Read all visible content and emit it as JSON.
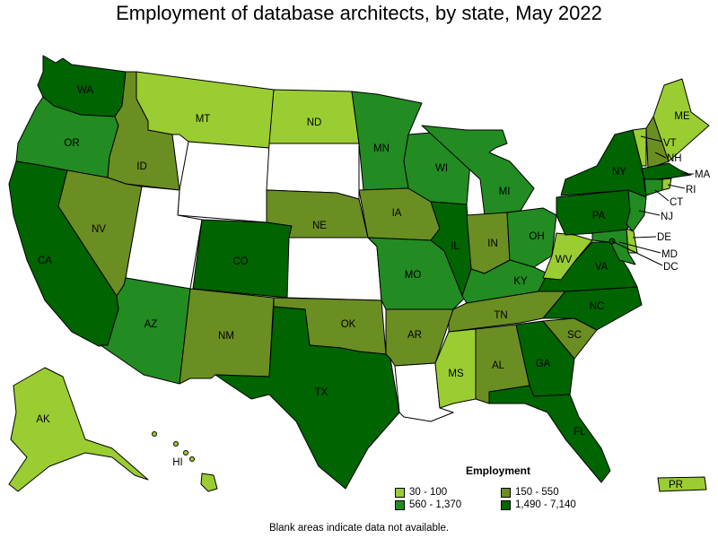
{
  "title": "Employment of database architects, by state, May 2022",
  "legend": {
    "title": "Employment",
    "items": [
      {
        "label": "30 - 100",
        "color": "#9ACD32"
      },
      {
        "label": "150 - 550",
        "color": "#6B8E23"
      },
      {
        "label": "560 - 1,370",
        "color": "#228B22"
      },
      {
        "label": "1,490 - 7,140",
        "color": "#006400"
      }
    ]
  },
  "footnote": "Blank areas indicate data not available.",
  "states": {
    "WA": {
      "label": "WA",
      "color": "#006400"
    },
    "OR": {
      "label": "OR",
      "color": "#228B22"
    },
    "CA": {
      "label": "CA",
      "color": "#006400"
    },
    "ID": {
      "label": "ID",
      "color": "#6B8E23"
    },
    "NV": {
      "label": "NV",
      "color": "#6B8E23"
    },
    "MT": {
      "label": "MT",
      "color": "#9ACD32"
    },
    "WY": {
      "label": "",
      "color": "#ffffff"
    },
    "UT": {
      "label": "",
      "color": "#ffffff"
    },
    "AZ": {
      "label": "AZ",
      "color": "#228B22"
    },
    "CO": {
      "label": "CO",
      "color": "#006400"
    },
    "NM": {
      "label": "NM",
      "color": "#6B8E23"
    },
    "ND": {
      "label": "ND",
      "color": "#9ACD32"
    },
    "SD": {
      "label": "",
      "color": "#ffffff"
    },
    "NE": {
      "label": "NE",
      "color": "#6B8E23"
    },
    "KS": {
      "label": "",
      "color": "#ffffff"
    },
    "OK": {
      "label": "OK",
      "color": "#6B8E23"
    },
    "TX": {
      "label": "TX",
      "color": "#006400"
    },
    "MN": {
      "label": "MN",
      "color": "#228B22"
    },
    "IA": {
      "label": "IA",
      "color": "#6B8E23"
    },
    "MO": {
      "label": "MO",
      "color": "#228B22"
    },
    "AR": {
      "label": "AR",
      "color": "#6B8E23"
    },
    "LA": {
      "label": "",
      "color": "#ffffff"
    },
    "WI": {
      "label": "WI",
      "color": "#228B22"
    },
    "IL": {
      "label": "IL",
      "color": "#006400"
    },
    "MI": {
      "label": "MI",
      "color": "#228B22"
    },
    "IN": {
      "label": "IN",
      "color": "#6B8E23"
    },
    "OH": {
      "label": "OH",
      "color": "#228B22"
    },
    "KY": {
      "label": "KY",
      "color": "#228B22"
    },
    "TN": {
      "label": "TN",
      "color": "#6B8E23"
    },
    "MS": {
      "label": "MS",
      "color": "#9ACD32"
    },
    "AL": {
      "label": "AL",
      "color": "#6B8E23"
    },
    "GA": {
      "label": "GA",
      "color": "#006400"
    },
    "FL": {
      "label": "FL",
      "color": "#006400"
    },
    "SC": {
      "label": "SC",
      "color": "#6B8E23"
    },
    "NC": {
      "label": "NC",
      "color": "#006400"
    },
    "VA": {
      "label": "VA",
      "color": "#006400"
    },
    "WV": {
      "label": "WV",
      "color": "#9ACD32"
    },
    "PA": {
      "label": "PA",
      "color": "#006400"
    },
    "NY": {
      "label": "NY",
      "color": "#006400"
    },
    "VT": {
      "label": "VT",
      "color": "#9ACD32"
    },
    "NH": {
      "label": "NH",
      "color": "#6B8E23"
    },
    "ME": {
      "label": "ME",
      "color": "#9ACD32"
    },
    "MA": {
      "label": "MA",
      "color": "#006400"
    },
    "RI": {
      "label": "RI",
      "color": "#9ACD32"
    },
    "CT": {
      "label": "CT",
      "color": "#228B22"
    },
    "NJ": {
      "label": "NJ",
      "color": "#228B22"
    },
    "DE": {
      "label": "DE",
      "color": "#9ACD32"
    },
    "MD": {
      "label": "MD",
      "color": "#228B22"
    },
    "DC": {
      "label": "DC",
      "color": "#006400"
    },
    "AK": {
      "label": "AK",
      "color": "#9ACD32"
    },
    "HI": {
      "label": "HI",
      "color": "#9ACD32"
    },
    "PR": {
      "label": "PR",
      "color": "#9ACD32"
    }
  }
}
